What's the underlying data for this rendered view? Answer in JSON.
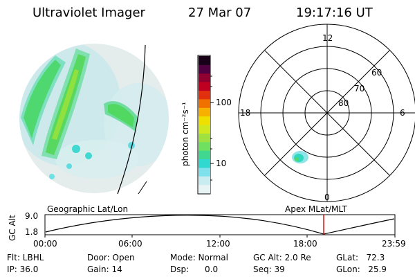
{
  "header": {
    "instrument": "Ultraviolet Imager",
    "date": "27 Mar 07",
    "time": "19:17:16 UT"
  },
  "colorbar": {
    "unit_label": "photon cm⁻²s⁻¹",
    "tick_100": "100",
    "tick_10": "10",
    "colors": [
      "#e8f4f4",
      "#c8ecf0",
      "#80e0ec",
      "#30d8d0",
      "#40d890",
      "#70e060",
      "#a0e040",
      "#d0e820",
      "#f0e000",
      "#f8b000",
      "#f07000",
      "#e03010",
      "#c00020",
      "#900030",
      "#500040",
      "#180018"
    ]
  },
  "polar": {
    "mlt_labels": {
      "top": "12",
      "left": "18",
      "right": "6",
      "bottom": "0"
    },
    "lat_labels": [
      "60",
      "70",
      "80"
    ]
  },
  "timeline": {
    "left_label": "Geographic Lat/Lon",
    "right_label": "Apex MLat/MLT",
    "axis_title": "GC Alt",
    "y_ticks": [
      "9.0",
      "1.8"
    ],
    "x_ticks": [
      "00:00",
      "06:00",
      "12:00",
      "18:00",
      "23:59"
    ]
  },
  "params": {
    "flt": "Flt: LBHL",
    "ip": "IP: 36.0",
    "door": "Door: Open",
    "gain": "Gain: 14",
    "mode": "Mode: Normal",
    "dsp": "Dsp:      0.0",
    "gc_alt": "GC Alt: 2.0 Re",
    "seq": "Seq: 39",
    "glat": "GLat:   72.3",
    "glon": "GLon:   25.9"
  }
}
